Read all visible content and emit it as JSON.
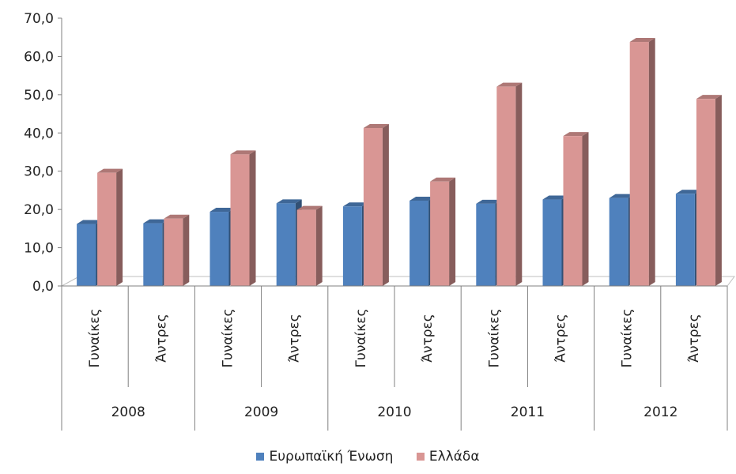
{
  "chart_data": {
    "type": "bar",
    "x_groups": [
      {
        "year": "2008",
        "labels": [
          "Γυναίκες",
          "Άντρες"
        ]
      },
      {
        "year": "2009",
        "labels": [
          "Γυναίκες",
          "Άντρες"
        ]
      },
      {
        "year": "2010",
        "labels": [
          "Γυναίκες",
          "Άντρες"
        ]
      },
      {
        "year": "2011",
        "labels": [
          "Γυναίκες",
          "Άντρες"
        ]
      },
      {
        "year": "2012",
        "labels": [
          "Γυναίκες",
          "Άντρες"
        ]
      }
    ],
    "categories": [
      "2008 Γυναίκες",
      "2008 Άντρες",
      "2009 Γυναίκες",
      "2009 Άντρες",
      "2010 Γυναίκες",
      "2010 Άντρες",
      "2011 Γυναίκες",
      "2011 Άντρες",
      "2012 Γυναίκες",
      "2012 Άντρες"
    ],
    "series": [
      {
        "name": "Ευρωπαϊκή Ένωση",
        "color": "#4F81BD",
        "values": [
          16.2,
          16.4,
          19.4,
          21.6,
          20.8,
          22.3,
          21.5,
          22.6,
          23.0,
          24.1
        ]
      },
      {
        "name": "Ελλάδα",
        "color": "#D99694",
        "values": [
          29.6,
          17.6,
          34.4,
          19.9,
          41.3,
          27.3,
          52.1,
          39.2,
          63.8,
          48.9
        ]
      }
    ],
    "ylim": [
      0,
      70
    ],
    "yticks": [
      "0,0",
      "10,0",
      "20,0",
      "30,0",
      "40,0",
      "50,0",
      "60,0",
      "70,0"
    ],
    "grid": false,
    "legend_position": "bottom"
  }
}
